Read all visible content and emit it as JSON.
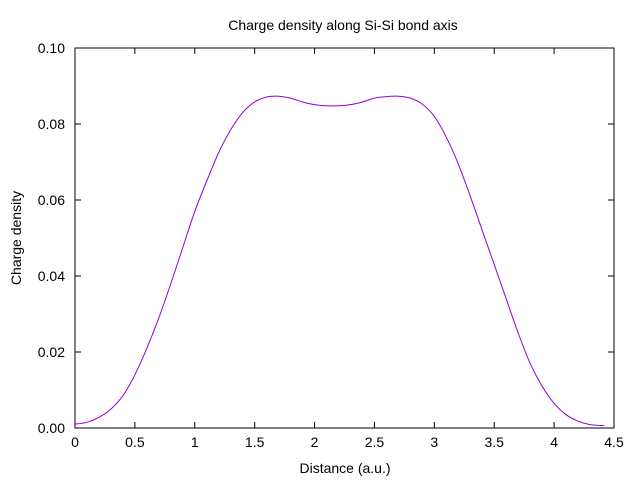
{
  "chart_data": {
    "type": "line",
    "title": "Charge density along Si-Si bond axis",
    "xlabel": "Distance (a.u.)",
    "ylabel": "Charge density",
    "xlim": [
      0,
      4.5
    ],
    "ylim": [
      0,
      0.1
    ],
    "x_ticks": [
      "0",
      "0.5",
      "1",
      "1.5",
      "2",
      "2.5",
      "3",
      "3.5",
      "4",
      "4.5"
    ],
    "y_ticks": [
      "0.00",
      "0.02",
      "0.04",
      "0.06",
      "0.08",
      "0.10"
    ],
    "grid": false,
    "legend": "none",
    "colors": {
      "series": "#9400d3",
      "axes": "#000000"
    },
    "series": [
      {
        "x": [
          0,
          0.1,
          0.2,
          0.3,
          0.4,
          0.5,
          0.6,
          0.7,
          0.8,
          0.9,
          1.0,
          1.1,
          1.2,
          1.3,
          1.4,
          1.5,
          1.6,
          1.7,
          1.8,
          1.9,
          2.0,
          2.1,
          2.2,
          2.3,
          2.4,
          2.5,
          2.6,
          2.7,
          2.8,
          2.9,
          3.0,
          3.1,
          3.2,
          3.3,
          3.4,
          3.5,
          3.6,
          3.7,
          3.8,
          3.9,
          4.0,
          4.1,
          4.2,
          4.3,
          4.42
        ],
        "y": [
          0.001,
          0.0015,
          0.0028,
          0.005,
          0.0085,
          0.014,
          0.021,
          0.029,
          0.038,
          0.0475,
          0.057,
          0.065,
          0.0725,
          0.0785,
          0.083,
          0.0858,
          0.0871,
          0.0873,
          0.0868,
          0.0858,
          0.0851,
          0.0848,
          0.0848,
          0.0851,
          0.0858,
          0.0868,
          0.0872,
          0.0873,
          0.0868,
          0.0852,
          0.082,
          0.0765,
          0.0695,
          0.061,
          0.052,
          0.043,
          0.034,
          0.025,
          0.017,
          0.011,
          0.0065,
          0.0035,
          0.0018,
          0.0009,
          0.0006
        ]
      }
    ]
  }
}
